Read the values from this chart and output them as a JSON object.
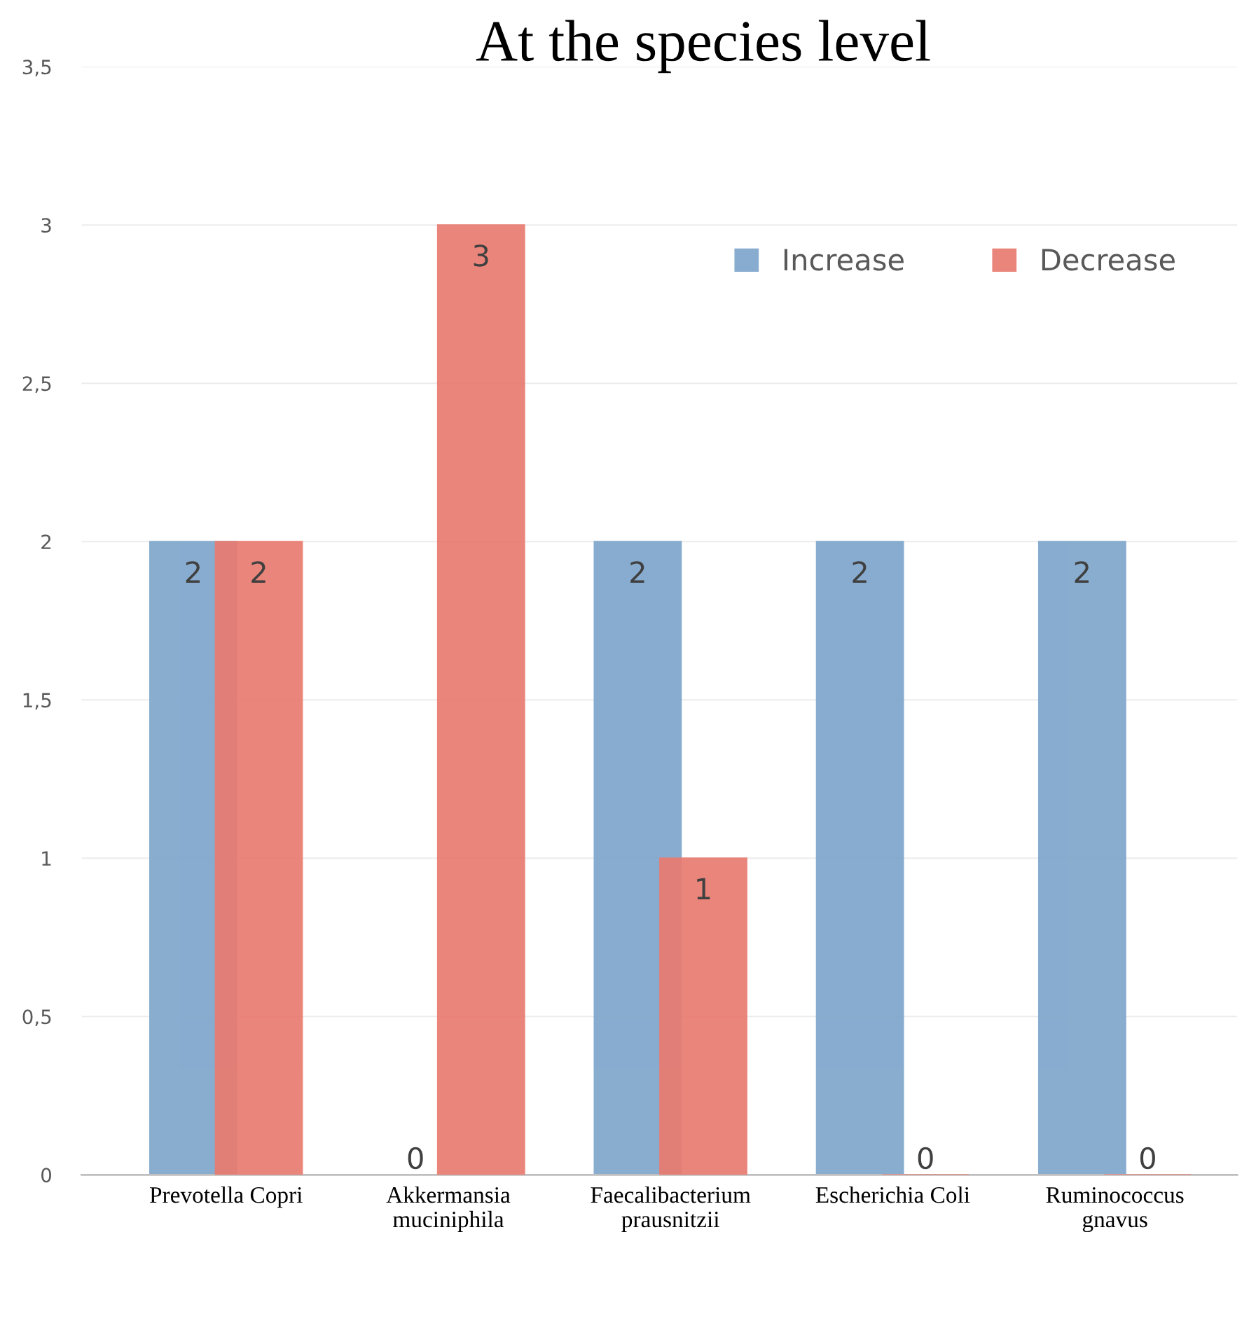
{
  "chart_data": {
    "type": "bar",
    "title": "At the species level",
    "categories": [
      "Prevotella Copri",
      "Akkermansia muciniphila",
      "Faecalibacterium prausnitzii",
      "Escherichia Coli",
      "Ruminococcus gnavus"
    ],
    "series": [
      {
        "name": "Increase",
        "color": "#7ea6cb",
        "values": [
          2,
          0,
          2,
          2,
          2
        ]
      },
      {
        "name": "Decrease",
        "color": "#e97b70",
        "values": [
          2,
          3,
          1,
          0,
          0
        ]
      }
    ],
    "ylim": [
      0,
      3.5
    ],
    "yticks": [
      0,
      {
        "value": 0.5,
        "label": "0,5"
      },
      1,
      {
        "value": 1.5,
        "label": "1,5"
      },
      2,
      {
        "value": 2.5,
        "label": "2,5"
      },
      3,
      {
        "value": 3.5,
        "label": "3,5"
      }
    ],
    "grid": "y",
    "legend": "top right",
    "data_labels": true
  }
}
